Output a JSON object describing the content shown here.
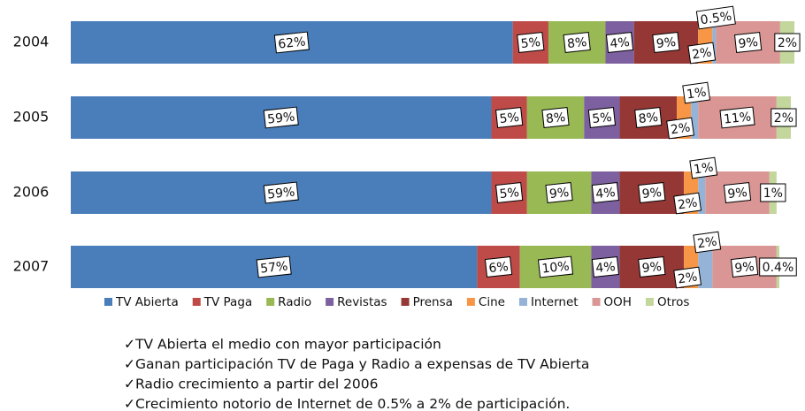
{
  "chart_data": {
    "type": "stacked-bar-horizontal",
    "categories": [
      "2004",
      "2005",
      "2006",
      "2007"
    ],
    "series": [
      {
        "name": "TV Abierta",
        "color": "#4a7ebb",
        "values": [
          62,
          59,
          59,
          57
        ],
        "value_labels": [
          "62%",
          "59%",
          "59%",
          "57%"
        ]
      },
      {
        "name": "TV Paga",
        "color": "#be4b48",
        "values": [
          5,
          5,
          5,
          6
        ],
        "value_labels": [
          "5%",
          "5%",
          "5%",
          "6%"
        ]
      },
      {
        "name": "Radio",
        "color": "#98b954",
        "values": [
          8,
          8,
          9,
          10
        ],
        "value_labels": [
          "8%",
          "8%",
          "9%",
          "10%"
        ]
      },
      {
        "name": "Revistas",
        "color": "#7d60a0",
        "values": [
          4,
          5,
          4,
          4
        ],
        "value_labels": [
          "4%",
          "5%",
          "4%",
          "4%"
        ]
      },
      {
        "name": "Prensa",
        "color": "#953735",
        "values": [
          9,
          8,
          9,
          9
        ],
        "value_labels": [
          "9%",
          "8%",
          "9%",
          "9%"
        ]
      },
      {
        "name": "Cine",
        "color": "#f79646",
        "values": [
          2,
          2,
          2,
          2
        ],
        "value_labels": [
          "2%",
          "2%",
          "2%",
          "2%"
        ]
      },
      {
        "name": "Internet",
        "color": "#95b3d7",
        "values": [
          0.5,
          1,
          1,
          2
        ],
        "value_labels": [
          "0.5%",
          "1%",
          "1%",
          "2%"
        ]
      },
      {
        "name": "OOH",
        "color": "#d99694",
        "values": [
          9,
          11,
          9,
          9
        ],
        "value_labels": [
          "9%",
          "11%",
          "9%",
          "9%"
        ]
      },
      {
        "name": "Otros",
        "color": "#c3d69b",
        "values": [
          2,
          2,
          1,
          0.4
        ],
        "value_labels": [
          "2%",
          "2%",
          "1%",
          "0.4%"
        ]
      }
    ],
    "legend": "bottom"
  },
  "notes": [
    "✓TV Abierta el medio con mayor participación",
    "✓Ganan participación TV de Paga y Radio a expensas de TV Abierta",
    "✓Radio crecimiento a partir del 2006",
    "✓Crecimiento notorio de Internet  de 0.5% a 2% de participación."
  ]
}
